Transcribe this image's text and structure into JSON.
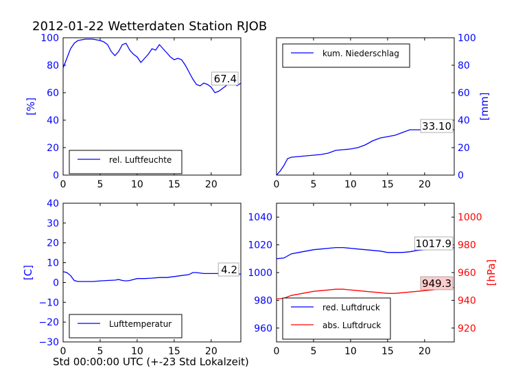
{
  "title": "2012-01-22 Wetterdaten Station RJOB",
  "xlabel_bottom": "Std 00:00:00 UTC (+-23 Std Lokalzeit)",
  "colors": {
    "blue": "#0000ff",
    "red": "#ff0000",
    "black": "#000000",
    "annot_bg_red": "#ffcccc"
  },
  "chart_data": [
    {
      "id": "humidity",
      "type": "line",
      "xlim": [
        0,
        24
      ],
      "ylim": [
        0,
        100
      ],
      "xticks": [
        "0",
        "5",
        "10",
        "15",
        "20"
      ],
      "yticks_left": [
        "0",
        "20",
        "40",
        "60",
        "80",
        "100"
      ],
      "ylabel": "[%]",
      "legend": {
        "placement": "lower-left",
        "entries": [
          {
            "label": "rel. Luftfeuchte",
            "color": "#0000ff"
          }
        ]
      },
      "annotation": "67.4",
      "series": [
        {
          "name": "rel. Luftfeuchte",
          "color": "#0000ff",
          "x": [
            0,
            0.5,
            1,
            1.5,
            2,
            3,
            4,
            5,
            5.5,
            6,
            6.5,
            7,
            7.5,
            8,
            8.5,
            9,
            9.5,
            10,
            10.5,
            11,
            11.5,
            12,
            12.5,
            13,
            13.5,
            14,
            14.5,
            15,
            15.5,
            16,
            16.5,
            17,
            17.5,
            18,
            18.5,
            19,
            19.5,
            20,
            20.5,
            21,
            21.5,
            22,
            22.5,
            23,
            23.5,
            24
          ],
          "y": [
            78,
            85,
            92,
            96,
            98,
            99,
            99,
            98,
            97,
            95,
            90,
            87,
            90,
            95,
            96,
            91,
            88,
            86,
            82,
            85,
            88,
            92,
            91,
            95,
            92,
            89,
            86,
            84,
            85,
            84,
            80,
            75,
            70,
            66,
            65,
            67,
            66,
            64,
            60,
            61,
            63,
            65,
            68,
            67,
            65,
            67
          ]
        }
      ]
    },
    {
      "id": "precipitation",
      "type": "line",
      "xlim": [
        0,
        24
      ],
      "ylim": [
        0,
        100
      ],
      "xticks": [
        "0",
        "5",
        "10",
        "15",
        "20"
      ],
      "yticks_right": [
        "0",
        "20",
        "40",
        "60",
        "80",
        "100"
      ],
      "ylabel": "[mm]",
      "legend": {
        "placement": "upper-left",
        "entries": [
          {
            "label": "kum. Niederschlag",
            "color": "#0000ff"
          }
        ]
      },
      "annotation": "33.10",
      "series": [
        {
          "name": "kum. Niederschlag",
          "color": "#0000ff",
          "x": [
            0,
            0.5,
            1,
            1.5,
            2,
            3,
            4,
            5,
            6,
            7,
            8,
            9,
            10,
            11,
            12,
            13,
            14,
            15,
            16,
            17,
            18,
            19,
            20,
            21,
            22,
            23,
            24
          ],
          "y": [
            0,
            3,
            7,
            12,
            13,
            13.5,
            14,
            14.5,
            15,
            16,
            18,
            18.5,
            19,
            20,
            22,
            25,
            27,
            28,
            29,
            31,
            33,
            33,
            33,
            33,
            33,
            33,
            33.1
          ]
        }
      ]
    },
    {
      "id": "temperature",
      "type": "line",
      "xlim": [
        0,
        24
      ],
      "ylim": [
        -30,
        40
      ],
      "xticks": [
        "0",
        "5",
        "10",
        "15",
        "20"
      ],
      "yticks_left": [
        "−30",
        "−20",
        "−10",
        "0",
        "10",
        "20",
        "30",
        "40"
      ],
      "ylabel": "[C]",
      "legend": {
        "placement": "lower-left",
        "entries": [
          {
            "label": "Lufttemperatur",
            "color": "#0000ff"
          }
        ]
      },
      "annotation": "4.2",
      "series": [
        {
          "name": "Lufttemperatur",
          "color": "#0000ff",
          "x": [
            0,
            0.5,
            1,
            1.5,
            2,
            3,
            4,
            5,
            6,
            7,
            7.5,
            8,
            8.5,
            9,
            9.5,
            10,
            11,
            12,
            13,
            14,
            15,
            16,
            17,
            17.5,
            18,
            19,
            20,
            21,
            22,
            23,
            24
          ],
          "y": [
            5.5,
            5,
            3.5,
            1,
            0.5,
            0.5,
            0.5,
            0.8,
            1,
            1.2,
            1.5,
            1,
            0.8,
            1,
            1.5,
            2,
            2,
            2.2,
            2.5,
            2.5,
            3,
            3.5,
            4,
            5,
            5,
            4.5,
            4.5,
            4.5,
            4.2,
            4.5,
            4.2
          ]
        }
      ]
    },
    {
      "id": "pressure",
      "type": "line",
      "xlim": [
        0,
        24
      ],
      "ylim_left": [
        950,
        1050
      ],
      "ylim_right": [
        910,
        1010
      ],
      "xticks": [
        "0",
        "5",
        "10",
        "15",
        "20"
      ],
      "yticks_left": [
        "960",
        "980",
        "1000",
        "1020",
        "1040"
      ],
      "yticks_right": [
        "920",
        "940",
        "960",
        "980",
        "1000"
      ],
      "ylabel_right": "[hPa]",
      "legend": {
        "placement": "lower-left",
        "entries": [
          {
            "label": "red. Luftdruck",
            "color": "#0000ff"
          },
          {
            "label": "abs. Luftdruck",
            "color": "#ff0000"
          }
        ]
      },
      "annotations": [
        "1017.9",
        "949.3"
      ],
      "series": [
        {
          "name": "red. Luftdruck",
          "axis": "left",
          "color": "#0000ff",
          "x": [
            0,
            1,
            2,
            3,
            4,
            5,
            6,
            7,
            8,
            9,
            10,
            11,
            12,
            13,
            14,
            15,
            16,
            17,
            18,
            19,
            20,
            21,
            22,
            23,
            24
          ],
          "y": [
            1010,
            1010.5,
            1013.5,
            1014.5,
            1015.5,
            1016.5,
            1017,
            1017.5,
            1018,
            1018,
            1017.5,
            1017,
            1016.5,
            1016,
            1015.5,
            1014.5,
            1014.5,
            1014.5,
            1015,
            1016,
            1016.5,
            1017,
            1017.5,
            1017.8,
            1017.9
          ]
        },
        {
          "name": "abs. Luftdruck",
          "axis": "right",
          "color": "#ff0000",
          "x": [
            0,
            1,
            2,
            3,
            4,
            5,
            6,
            7,
            8,
            9,
            10,
            11,
            12,
            13,
            14,
            15,
            16,
            17,
            18,
            19,
            20,
            21,
            22,
            23,
            24
          ],
          "y": [
            941,
            941.5,
            943.5,
            944.5,
            945.5,
            946.5,
            947,
            947.5,
            948,
            948,
            947.5,
            947,
            946.5,
            946,
            945.5,
            945,
            945,
            945.5,
            946,
            946.5,
            947,
            947.5,
            948,
            948.5,
            949.3
          ]
        }
      ]
    }
  ]
}
